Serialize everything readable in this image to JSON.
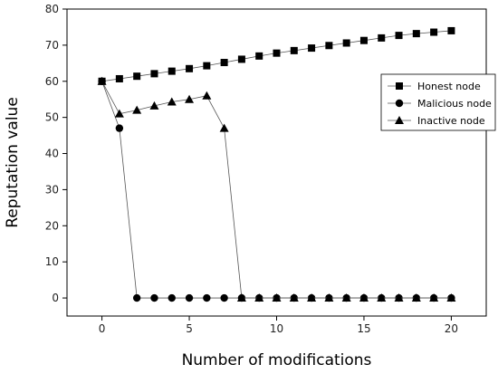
{
  "chart_data": {
    "type": "line",
    "title": "",
    "xlabel": "Number of modifications",
    "ylabel": "Reputation value",
    "xlim": [
      -2,
      22
    ],
    "ylim": [
      -5,
      80
    ],
    "xticks": [
      0,
      5,
      10,
      15,
      20
    ],
    "yticks": [
      0,
      10,
      20,
      30,
      40,
      50,
      60,
      70,
      80
    ],
    "legend_position": "top-right",
    "grid": false,
    "series": [
      {
        "name": "Honest node",
        "marker": "square",
        "x": [
          0,
          1,
          2,
          3,
          4,
          5,
          6,
          7,
          8,
          9,
          10,
          11,
          12,
          13,
          14,
          15,
          16,
          17,
          18,
          19,
          20
        ],
        "values": [
          60,
          60.7,
          61.4,
          62.1,
          62.8,
          63.5,
          64.3,
          65.2,
          66.1,
          67.0,
          67.8,
          68.5,
          69.2,
          69.9,
          70.6,
          71.3,
          72.0,
          72.7,
          73.2,
          73.6,
          74
        ]
      },
      {
        "name": "Malicious node",
        "marker": "circle",
        "x": [
          0,
          1,
          2,
          3,
          4,
          5,
          6,
          7,
          8,
          9,
          10,
          11,
          12,
          13,
          14,
          15,
          16,
          17,
          18,
          19,
          20
        ],
        "values": [
          60,
          47,
          0,
          0,
          0,
          0,
          0,
          0,
          0,
          0,
          0,
          0,
          0,
          0,
          0,
          0,
          0,
          0,
          0,
          0,
          0
        ]
      },
      {
        "name": "Inactive node",
        "marker": "triangle",
        "x": [
          0,
          1,
          2,
          3,
          4,
          5,
          6,
          7,
          8,
          9,
          10,
          11,
          12,
          13,
          14,
          15,
          16,
          17,
          18,
          19,
          20
        ],
        "values": [
          60,
          51,
          52,
          53.2,
          54.3,
          55,
          56,
          47,
          0,
          0,
          0,
          0,
          0,
          0,
          0,
          0,
          0,
          0,
          0,
          0,
          0
        ]
      }
    ]
  }
}
